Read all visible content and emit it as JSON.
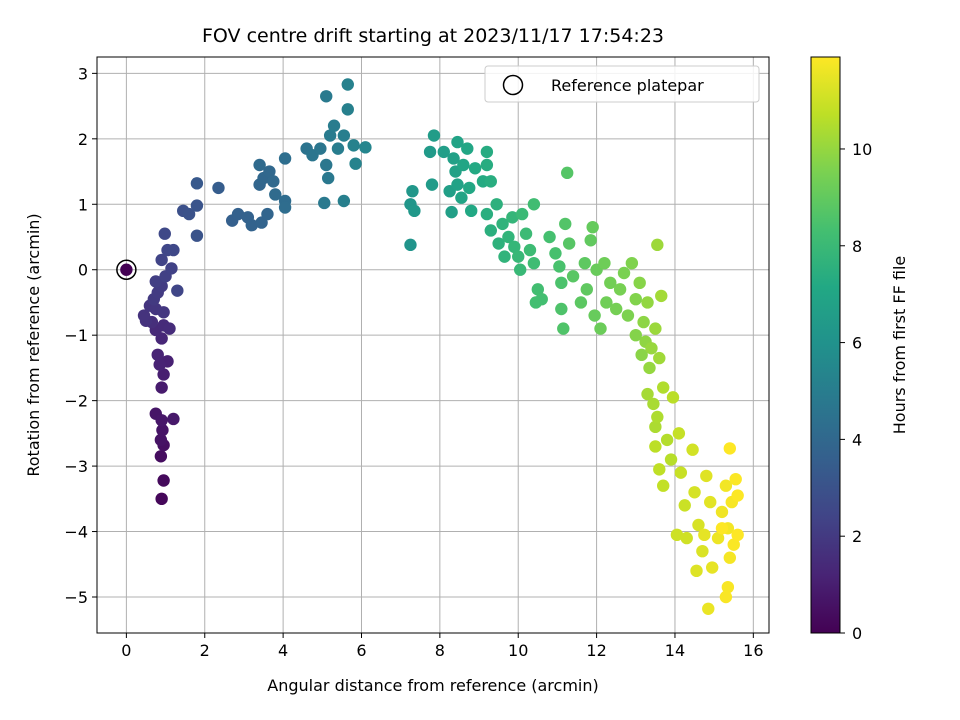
{
  "chart_data": {
    "type": "scatter",
    "title": "FOV centre drift starting at 2023/11/17 17:54:23",
    "xlabel": "Angular distance from reference (arcmin)",
    "ylabel": "Rotation from reference (arcmin)",
    "xlim": [
      -0.75,
      16.4
    ],
    "ylim": [
      -5.55,
      3.25
    ],
    "xticks": [
      0,
      2,
      4,
      6,
      8,
      10,
      12,
      14,
      16
    ],
    "yticks": [
      -5,
      -4,
      -3,
      -2,
      -1,
      0,
      1,
      2,
      3
    ],
    "grid": true,
    "legend": {
      "placement": "top-right",
      "entries": [
        "Reference platepar"
      ]
    },
    "reference_point": {
      "x": 0,
      "y": 0
    },
    "colorbar": {
      "label": "Hours from first FF file",
      "range": [
        0,
        11.9
      ],
      "ticks": [
        0,
        2,
        4,
        6,
        8,
        10
      ],
      "colormap": "viridis"
    },
    "series": [
      {
        "points": [
          {
            "x": 0.9,
            "y": -3.5,
            "h": 0.2
          },
          {
            "x": 0.95,
            "y": -3.22,
            "h": 0.3
          },
          {
            "x": 0.88,
            "y": -2.85,
            "h": 0.4
          },
          {
            "x": 0.95,
            "y": -2.68,
            "h": 0.5
          },
          {
            "x": 0.88,
            "y": -2.6,
            "h": 0.6
          },
          {
            "x": 0.92,
            "y": -2.45,
            "h": 0.65
          },
          {
            "x": 0.75,
            "y": -2.2,
            "h": 0.7
          },
          {
            "x": 1.2,
            "y": -2.28,
            "h": 0.8
          },
          {
            "x": 0.9,
            "y": -2.3,
            "h": 0.75
          },
          {
            "x": 0.9,
            "y": -1.8,
            "h": 0.9
          },
          {
            "x": 0.95,
            "y": -1.6,
            "h": 1.0
          },
          {
            "x": 1.05,
            "y": -1.4,
            "h": 1.1
          },
          {
            "x": 0.85,
            "y": -1.45,
            "h": 1.15
          },
          {
            "x": 0.8,
            "y": -1.3,
            "h": 1.2
          },
          {
            "x": 0.9,
            "y": -1.05,
            "h": 1.3
          },
          {
            "x": 0.75,
            "y": -0.92,
            "h": 1.4
          },
          {
            "x": 0.95,
            "y": -0.85,
            "h": 1.45
          },
          {
            "x": 1.1,
            "y": -0.9,
            "h": 1.5
          },
          {
            "x": 0.65,
            "y": -0.8,
            "h": 1.6
          },
          {
            "x": 0.5,
            "y": -0.78,
            "h": 1.7
          },
          {
            "x": 0.45,
            "y": -0.7,
            "h": 1.75
          },
          {
            "x": 0.6,
            "y": -0.55,
            "h": 1.8
          },
          {
            "x": 0.75,
            "y": -0.6,
            "h": 1.85
          },
          {
            "x": 0.95,
            "y": -0.65,
            "h": 1.9
          },
          {
            "x": 0.7,
            "y": -0.45,
            "h": 2.0
          },
          {
            "x": 0.8,
            "y": -0.35,
            "h": 2.05
          },
          {
            "x": 0.9,
            "y": -0.25,
            "h": 2.1
          },
          {
            "x": 0.75,
            "y": -0.18,
            "h": 2.2
          },
          {
            "x": 1.0,
            "y": -0.1,
            "h": 2.25
          },
          {
            "x": 1.15,
            "y": 0.02,
            "h": 2.3
          },
          {
            "x": 0.9,
            "y": 0.15,
            "h": 2.4
          },
          {
            "x": 1.3,
            "y": -0.32,
            "h": 2.45
          },
          {
            "x": 1.05,
            "y": 0.3,
            "h": 2.5
          },
          {
            "x": 1.2,
            "y": 0.3,
            "h": 2.55
          },
          {
            "x": 0.98,
            "y": 0.55,
            "h": 2.6
          },
          {
            "x": 1.45,
            "y": 0.9,
            "h": 2.9
          },
          {
            "x": 1.6,
            "y": 0.85,
            "h": 3.0
          },
          {
            "x": 1.8,
            "y": 0.98,
            "h": 3.1
          },
          {
            "x": 1.8,
            "y": 0.52,
            "h": 3.05
          },
          {
            "x": 1.8,
            "y": 1.32,
            "h": 3.3
          },
          {
            "x": 2.35,
            "y": 1.25,
            "h": 3.5
          },
          {
            "x": 2.7,
            "y": 0.75,
            "h": 3.6
          },
          {
            "x": 2.85,
            "y": 0.85,
            "h": 3.65
          },
          {
            "x": 3.1,
            "y": 0.8,
            "h": 3.7
          },
          {
            "x": 3.2,
            "y": 0.68,
            "h": 3.75
          },
          {
            "x": 3.45,
            "y": 0.72,
            "h": 3.8
          },
          {
            "x": 3.6,
            "y": 0.85,
            "h": 3.85
          },
          {
            "x": 3.4,
            "y": 1.3,
            "h": 3.9
          },
          {
            "x": 3.5,
            "y": 1.4,
            "h": 3.95
          },
          {
            "x": 3.65,
            "y": 1.5,
            "h": 4.0
          },
          {
            "x": 3.75,
            "y": 1.35,
            "h": 4.05
          },
          {
            "x": 3.4,
            "y": 1.6,
            "h": 4.1
          },
          {
            "x": 3.8,
            "y": 1.15,
            "h": 4.15
          },
          {
            "x": 4.05,
            "y": 1.05,
            "h": 4.2
          },
          {
            "x": 4.05,
            "y": 0.95,
            "h": 4.25
          },
          {
            "x": 4.05,
            "y": 1.7,
            "h": 4.3
          },
          {
            "x": 4.6,
            "y": 1.85,
            "h": 4.5
          },
          {
            "x": 4.75,
            "y": 1.75,
            "h": 4.6
          },
          {
            "x": 4.95,
            "y": 1.85,
            "h": 4.65
          },
          {
            "x": 5.1,
            "y": 1.6,
            "h": 4.7
          },
          {
            "x": 5.15,
            "y": 1.4,
            "h": 4.75
          },
          {
            "x": 5.05,
            "y": 1.02,
            "h": 4.8
          },
          {
            "x": 5.1,
            "y": 2.65,
            "h": 4.85
          },
          {
            "x": 5.2,
            "y": 2.05,
            "h": 4.9
          },
          {
            "x": 5.3,
            "y": 2.2,
            "h": 4.95
          },
          {
            "x": 5.4,
            "y": 1.85,
            "h": 5.0
          },
          {
            "x": 5.55,
            "y": 2.05,
            "h": 5.05
          },
          {
            "x": 5.55,
            "y": 1.05,
            "h": 5.1
          },
          {
            "x": 5.65,
            "y": 2.45,
            "h": 5.15
          },
          {
            "x": 5.65,
            "y": 2.83,
            "h": 5.2
          },
          {
            "x": 5.8,
            "y": 1.9,
            "h": 5.25
          },
          {
            "x": 5.85,
            "y": 1.62,
            "h": 5.3
          },
          {
            "x": 6.1,
            "y": 1.87,
            "h": 5.4
          },
          {
            "x": 7.25,
            "y": 0.38,
            "h": 6.1
          },
          {
            "x": 7.25,
            "y": 1.0,
            "h": 6.2
          },
          {
            "x": 7.3,
            "y": 1.2,
            "h": 6.25
          },
          {
            "x": 7.35,
            "y": 0.9,
            "h": 6.3
          },
          {
            "x": 7.75,
            "y": 1.8,
            "h": 6.4
          },
          {
            "x": 7.8,
            "y": 1.3,
            "h": 6.45
          },
          {
            "x": 7.85,
            "y": 2.05,
            "h": 6.5
          },
          {
            "x": 8.1,
            "y": 1.8,
            "h": 6.6
          },
          {
            "x": 8.25,
            "y": 1.2,
            "h": 6.65
          },
          {
            "x": 8.3,
            "y": 0.88,
            "h": 6.7
          },
          {
            "x": 8.35,
            "y": 1.7,
            "h": 6.75
          },
          {
            "x": 8.4,
            "y": 1.5,
            "h": 6.8
          },
          {
            "x": 8.45,
            "y": 1.3,
            "h": 6.85
          },
          {
            "x": 8.45,
            "y": 1.95,
            "h": 6.9
          },
          {
            "x": 8.55,
            "y": 1.1,
            "h": 6.95
          },
          {
            "x": 8.6,
            "y": 1.6,
            "h": 7.0
          },
          {
            "x": 8.7,
            "y": 1.85,
            "h": 7.05
          },
          {
            "x": 8.75,
            "y": 1.25,
            "h": 7.1
          },
          {
            "x": 8.8,
            "y": 0.9,
            "h": 7.15
          },
          {
            "x": 8.9,
            "y": 1.55,
            "h": 7.2
          },
          {
            "x": 9.1,
            "y": 1.35,
            "h": 7.25
          },
          {
            "x": 9.2,
            "y": 1.8,
            "h": 7.3
          },
          {
            "x": 9.2,
            "y": 1.6,
            "h": 7.35
          },
          {
            "x": 9.3,
            "y": 1.35,
            "h": 7.4
          },
          {
            "x": 9.2,
            "y": 0.85,
            "h": 7.45
          },
          {
            "x": 9.3,
            "y": 0.6,
            "h": 7.5
          },
          {
            "x": 9.45,
            "y": 1.0,
            "h": 7.55
          },
          {
            "x": 9.5,
            "y": 0.4,
            "h": 7.6
          },
          {
            "x": 9.6,
            "y": 0.7,
            "h": 7.65
          },
          {
            "x": 9.65,
            "y": 0.2,
            "h": 7.7
          },
          {
            "x": 9.75,
            "y": 0.5,
            "h": 7.75
          },
          {
            "x": 9.85,
            "y": 0.8,
            "h": 7.8
          },
          {
            "x": 9.9,
            "y": 0.35,
            "h": 7.85
          },
          {
            "x": 10.0,
            "y": 0.2,
            "h": 7.9
          },
          {
            "x": 10.05,
            "y": 0.0,
            "h": 7.95
          },
          {
            "x": 10.1,
            "y": 0.85,
            "h": 8.0
          },
          {
            "x": 10.2,
            "y": 0.55,
            "h": 8.05
          },
          {
            "x": 10.3,
            "y": 0.3,
            "h": 8.1
          },
          {
            "x": 10.4,
            "y": 0.1,
            "h": 8.15
          },
          {
            "x": 10.4,
            "y": 1.0,
            "h": 8.2
          },
          {
            "x": 10.5,
            "y": -0.3,
            "h": 8.25
          },
          {
            "x": 10.6,
            "y": -0.45,
            "h": 8.3
          },
          {
            "x": 10.45,
            "y": -0.5,
            "h": 8.3
          },
          {
            "x": 10.8,
            "y": 0.5,
            "h": 8.35
          },
          {
            "x": 10.95,
            "y": 0.25,
            "h": 8.4
          },
          {
            "x": 11.05,
            "y": 0.05,
            "h": 8.45
          },
          {
            "x": 11.1,
            "y": -0.2,
            "h": 8.5
          },
          {
            "x": 11.1,
            "y": -0.6,
            "h": 8.55
          },
          {
            "x": 11.15,
            "y": -0.9,
            "h": 8.6
          },
          {
            "x": 11.2,
            "y": 0.7,
            "h": 8.65
          },
          {
            "x": 11.25,
            "y": 1.48,
            "h": 8.7
          },
          {
            "x": 11.3,
            "y": 0.4,
            "h": 8.75
          },
          {
            "x": 11.4,
            "y": -0.1,
            "h": 8.8
          },
          {
            "x": 11.6,
            "y": -0.5,
            "h": 8.85
          },
          {
            "x": 11.7,
            "y": 0.1,
            "h": 8.9
          },
          {
            "x": 11.75,
            "y": -0.3,
            "h": 8.95
          },
          {
            "x": 11.85,
            "y": 0.45,
            "h": 9.0
          },
          {
            "x": 11.9,
            "y": 0.65,
            "h": 9.05
          },
          {
            "x": 11.95,
            "y": -0.7,
            "h": 9.1
          },
          {
            "x": 12.0,
            "y": 0.0,
            "h": 9.15
          },
          {
            "x": 12.1,
            "y": -0.9,
            "h": 9.2
          },
          {
            "x": 12.2,
            "y": 0.1,
            "h": 9.25
          },
          {
            "x": 12.25,
            "y": -0.5,
            "h": 9.3
          },
          {
            "x": 12.35,
            "y": -0.2,
            "h": 9.35
          },
          {
            "x": 12.5,
            "y": -0.6,
            "h": 9.4
          },
          {
            "x": 12.6,
            "y": -0.3,
            "h": 9.45
          },
          {
            "x": 12.7,
            "y": -0.05,
            "h": 9.5
          },
          {
            "x": 12.8,
            "y": -0.7,
            "h": 9.55
          },
          {
            "x": 12.9,
            "y": 0.1,
            "h": 9.6
          },
          {
            "x": 13.0,
            "y": -0.45,
            "h": 9.65
          },
          {
            "x": 13.0,
            "y": -1.0,
            "h": 9.7
          },
          {
            "x": 13.1,
            "y": -0.2,
            "h": 9.75
          },
          {
            "x": 13.15,
            "y": -1.3,
            "h": 9.8
          },
          {
            "x": 13.2,
            "y": -0.8,
            "h": 9.85
          },
          {
            "x": 13.25,
            "y": -1.1,
            "h": 9.9
          },
          {
            "x": 13.3,
            "y": -0.5,
            "h": 9.95
          },
          {
            "x": 13.35,
            "y": -1.5,
            "h": 10.0
          },
          {
            "x": 13.4,
            "y": -1.2,
            "h": 10.05
          },
          {
            "x": 13.5,
            "y": -0.9,
            "h": 10.1
          },
          {
            "x": 13.55,
            "y": 0.38,
            "h": 10.15
          },
          {
            "x": 13.6,
            "y": -1.35,
            "h": 10.2
          },
          {
            "x": 13.65,
            "y": -0.4,
            "h": 10.25
          },
          {
            "x": 13.3,
            "y": -1.9,
            "h": 10.3
          },
          {
            "x": 13.45,
            "y": -2.05,
            "h": 10.35
          },
          {
            "x": 13.5,
            "y": -2.4,
            "h": 10.4
          },
          {
            "x": 13.55,
            "y": -2.25,
            "h": 10.45
          },
          {
            "x": 13.7,
            "y": -1.8,
            "h": 10.5
          },
          {
            "x": 13.8,
            "y": -2.6,
            "h": 10.55
          },
          {
            "x": 13.9,
            "y": -2.9,
            "h": 10.6
          },
          {
            "x": 13.95,
            "y": -1.95,
            "h": 10.65
          },
          {
            "x": 13.5,
            "y": -2.7,
            "h": 10.7
          },
          {
            "x": 13.6,
            "y": -3.05,
            "h": 10.75
          },
          {
            "x": 13.7,
            "y": -3.3,
            "h": 10.8
          },
          {
            "x": 14.1,
            "y": -2.5,
            "h": 10.85
          },
          {
            "x": 14.15,
            "y": -3.1,
            "h": 10.9
          },
          {
            "x": 14.25,
            "y": -3.6,
            "h": 10.95
          },
          {
            "x": 14.05,
            "y": -4.05,
            "h": 11.0
          },
          {
            "x": 14.3,
            "y": -4.1,
            "h": 11.05
          },
          {
            "x": 14.45,
            "y": -2.75,
            "h": 11.1
          },
          {
            "x": 14.5,
            "y": -3.4,
            "h": 11.15
          },
          {
            "x": 14.6,
            "y": -3.9,
            "h": 11.2
          },
          {
            "x": 14.7,
            "y": -4.3,
            "h": 11.25
          },
          {
            "x": 14.55,
            "y": -4.6,
            "h": 11.3
          },
          {
            "x": 14.8,
            "y": -3.15,
            "h": 11.35
          },
          {
            "x": 14.9,
            "y": -3.55,
            "h": 11.4
          },
          {
            "x": 14.75,
            "y": -4.05,
            "h": 11.45
          },
          {
            "x": 14.95,
            "y": -4.55,
            "h": 11.5
          },
          {
            "x": 14.85,
            "y": -5.18,
            "h": 11.55
          },
          {
            "x": 15.1,
            "y": -4.1,
            "h": 11.6
          },
          {
            "x": 15.2,
            "y": -3.7,
            "h": 11.65
          },
          {
            "x": 15.3,
            "y": -3.3,
            "h": 11.7
          },
          {
            "x": 15.35,
            "y": -3.95,
            "h": 11.72
          },
          {
            "x": 15.4,
            "y": -4.4,
            "h": 11.75
          },
          {
            "x": 15.45,
            "y": -3.55,
            "h": 11.78
          },
          {
            "x": 15.35,
            "y": -4.85,
            "h": 11.8
          },
          {
            "x": 15.3,
            "y": -5.0,
            "h": 11.82
          },
          {
            "x": 15.5,
            "y": -4.2,
            "h": 11.85
          },
          {
            "x": 15.55,
            "y": -3.2,
            "h": 11.87
          },
          {
            "x": 15.6,
            "y": -3.45,
            "h": 11.88
          },
          {
            "x": 15.6,
            "y": -4.05,
            "h": 11.9
          },
          {
            "x": 15.4,
            "y": -2.73,
            "h": 11.9
          },
          {
            "x": 15.2,
            "y": -3.95,
            "h": 11.9
          }
        ]
      }
    ]
  }
}
